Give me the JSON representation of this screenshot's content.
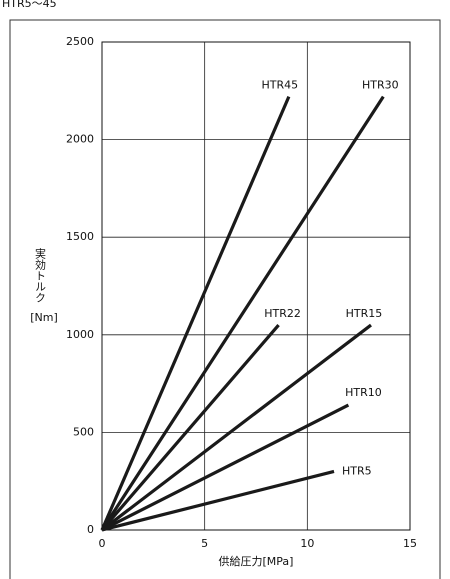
{
  "chart_data": {
    "type": "line",
    "title": "HTR5～45",
    "y_label": "実効トルク",
    "y_unit": "[Nm]",
    "x_label": "供給圧力[MPa]",
    "xlim": [
      0,
      15
    ],
    "xticks": [
      0,
      5,
      10,
      15
    ],
    "ylim": [
      0,
      2500
    ],
    "yticks": [
      0,
      500,
      1000,
      1500,
      2000,
      2500
    ],
    "grid": true,
    "series": [
      {
        "name": "HTR45",
        "color": "#1a1a1a",
        "x": [
          0,
          9.1
        ],
        "values": [
          0,
          2220
        ]
      },
      {
        "name": "HTR30",
        "color": "#1a1a1a",
        "x": [
          0,
          13.7
        ],
        "values": [
          0,
          2220
        ]
      },
      {
        "name": "HTR22",
        "color": "#1a1a1a",
        "x": [
          0,
          8.6
        ],
        "values": [
          0,
          1050
        ]
      },
      {
        "name": "HTR15",
        "color": "#1a1a1a",
        "x": [
          0,
          13.1
        ],
        "values": [
          0,
          1050
        ]
      },
      {
        "name": "HTR10",
        "color": "#1a1a1a",
        "x": [
          0,
          12.0
        ],
        "values": [
          0,
          640
        ]
      },
      {
        "name": "HTR5",
        "color": "#1a1a1a",
        "x": [
          0,
          11.3
        ],
        "values": [
          0,
          300
        ]
      }
    ]
  }
}
